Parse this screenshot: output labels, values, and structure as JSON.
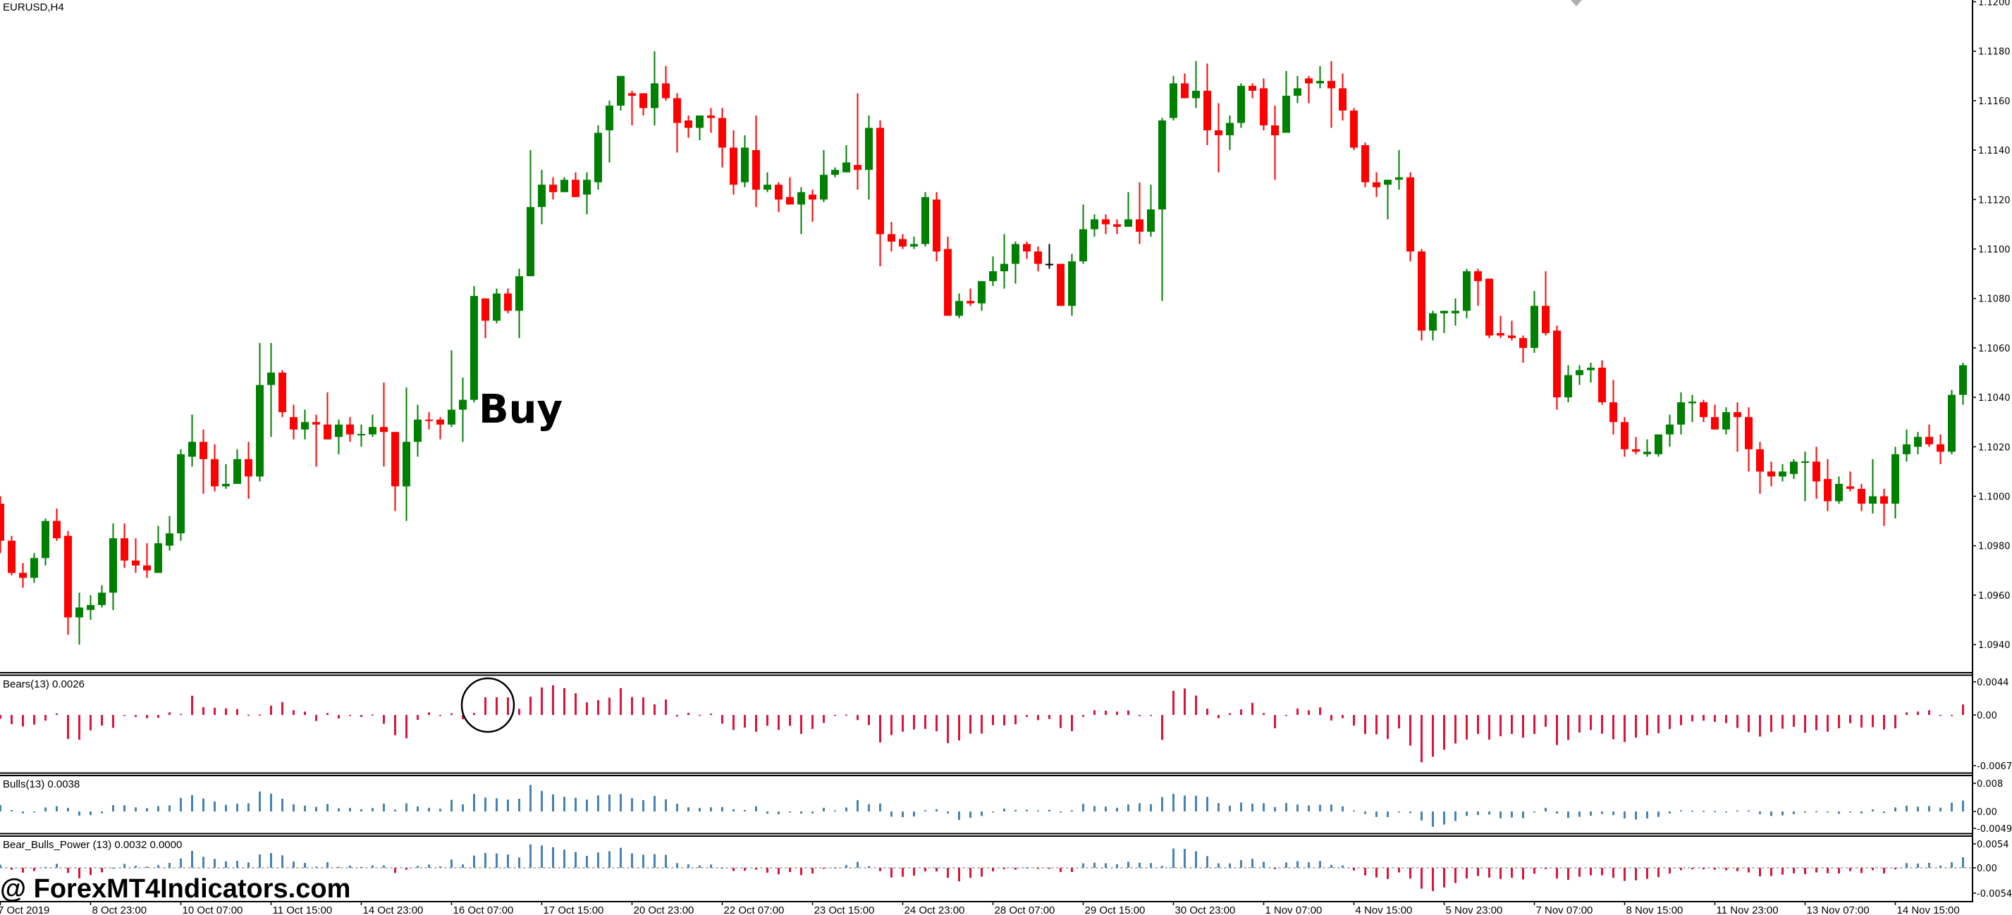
{
  "window": {
    "symbol_timeframe": "EURUSD,H4"
  },
  "annotation": {
    "buy_label": "Buy",
    "circle_marker": "signal-circle"
  },
  "watermark": "@ ForexMT4Indicators.com",
  "colors": {
    "bull": "#008000",
    "bear": "#ff0000",
    "doji": "#000000",
    "bears_hist": "#dc143c",
    "bulls_hist": "#4682b4",
    "axis": "#000000"
  },
  "chart_data": [
    {
      "type": "candlestick",
      "title": "EURUSD,H4",
      "price_ticks": [
        "1.1200",
        "1.1180",
        "1.1160",
        "1.1140",
        "1.1120",
        "1.1100",
        "1.1080",
        "1.1060",
        "1.1040",
        "1.1020",
        "1.1000",
        "1.0980",
        "1.0960",
        "1.0940"
      ],
      "time_labels": [
        "7 Oct 2019",
        "8 Oct 23:00",
        "10 Oct 07:00",
        "11 Oct 15:00",
        "14 Oct 23:00",
        "16 Oct 07:00",
        "17 Oct 15:00",
        "20 Oct 23:00",
        "22 Oct 07:00",
        "23 Oct 15:00",
        "24 Oct 23:00",
        "28 Oct 07:00",
        "29 Oct 15:00",
        "30 Oct 23:00",
        "1 Nov 07:00",
        "4 Nov 15:00",
        "5 Nov 23:00",
        "7 Nov 07:00",
        "8 Nov 15:00",
        "11 Nov 23:00",
        "13 Nov 07:00",
        "14 Nov 15:00"
      ],
      "bars_per_time_label": 8,
      "ohlc_fields": [
        "open",
        "high",
        "low",
        "close"
      ],
      "ohlc": [
        [
          1.0997,
          1.1,
          1.0977,
          1.0982
        ],
        [
          1.0982,
          1.0984,
          1.0968,
          1.0969
        ],
        [
          1.0969,
          1.0973,
          1.0963,
          1.0967
        ],
        [
          1.0967,
          1.0977,
          1.0965,
          1.0975
        ],
        [
          1.0975,
          1.0991,
          1.0972,
          1.099
        ],
        [
          1.099,
          1.0995,
          1.0982,
          1.0983
        ],
        [
          1.0984,
          1.0986,
          1.0944,
          1.0951
        ],
        [
          1.0951,
          1.0961,
          1.094,
          1.0955
        ],
        [
          1.0954,
          1.096,
          1.095,
          1.0956
        ],
        [
          1.0956,
          1.0964,
          1.0955,
          1.0961
        ],
        [
          1.0961,
          1.0989,
          1.0954,
          1.0983
        ],
        [
          1.0983,
          1.0989,
          1.0971,
          1.0974
        ],
        [
          1.0974,
          1.0983,
          1.0969,
          1.0972
        ],
        [
          1.0972,
          1.0981,
          1.0967,
          1.097
        ],
        [
          1.0969,
          1.0988,
          1.0969,
          1.0981
        ],
        [
          1.098,
          1.0992,
          1.0978,
          1.0985
        ],
        [
          1.0985,
          1.1019,
          1.0982,
          1.1017
        ],
        [
          1.1016,
          1.1033,
          1.1012,
          1.1022
        ],
        [
          1.1022,
          1.1027,
          1.1001,
          1.1015
        ],
        [
          1.1015,
          1.1021,
          1.1002,
          1.1004
        ],
        [
          1.1004,
          1.1013,
          1.1003,
          1.1005
        ],
        [
          1.1005,
          1.1019,
          1.1005,
          1.1015
        ],
        [
          1.1015,
          1.1022,
          1.0999,
          1.1008
        ],
        [
          1.1008,
          1.1062,
          1.1006,
          1.1045
        ],
        [
          1.1045,
          1.1062,
          1.1024,
          1.105
        ],
        [
          1.105,
          1.1051,
          1.1032,
          1.1034
        ],
        [
          1.1032,
          1.1037,
          1.1023,
          1.1027
        ],
        [
          1.1027,
          1.1035,
          1.1023,
          1.103
        ],
        [
          1.103,
          1.1033,
          1.1012,
          1.1029
        ],
        [
          1.1029,
          1.1042,
          1.1023,
          1.1023
        ],
        [
          1.1024,
          1.1031,
          1.1017,
          1.1029
        ],
        [
          1.1029,
          1.1032,
          1.1022,
          1.1025
        ],
        [
          1.1025,
          1.1029,
          1.102,
          1.10252
        ],
        [
          1.1025,
          1.1033,
          1.1024,
          1.1028
        ],
        [
          1.1028,
          1.1046,
          1.1012,
          1.1026
        ],
        [
          1.1026,
          1.1026,
          1.0994,
          1.1004
        ],
        [
          1.1004,
          1.1044,
          1.099,
          1.1022
        ],
        [
          1.1022,
          1.1037,
          1.1016,
          1.1031
        ],
        [
          1.1031,
          1.1034,
          1.1027,
          1.10305
        ],
        [
          1.1031,
          1.1032,
          1.1023,
          1.1029
        ],
        [
          1.1029,
          1.1059,
          1.1028,
          1.1035
        ],
        [
          1.1035,
          1.1048,
          1.1022,
          1.1039
        ],
        [
          1.1039,
          1.1085,
          1.1038,
          1.1081
        ],
        [
          1.108,
          1.108,
          1.1064,
          1.1071
        ],
        [
          1.1071,
          1.1084,
          1.107,
          1.1082
        ],
        [
          1.1082,
          1.1084,
          1.1074,
          1.1075
        ],
        [
          1.1075,
          1.1092,
          1.1064,
          1.1089
        ],
        [
          1.1089,
          1.114,
          1.1089,
          1.1117
        ],
        [
          1.1117,
          1.1132,
          1.111,
          1.1126
        ],
        [
          1.1126,
          1.1129,
          1.112,
          1.1123
        ],
        [
          1.1123,
          1.1129,
          1.1123,
          1.1128
        ],
        [
          1.1128,
          1.1131,
          1.1121,
          1.1121
        ],
        [
          1.1122,
          1.1131,
          1.1114,
          1.1128
        ],
        [
          1.1127,
          1.115,
          1.1124,
          1.1147
        ],
        [
          1.1148,
          1.116,
          1.1135,
          1.1158
        ],
        [
          1.1158,
          1.117,
          1.1156,
          1.117
        ],
        [
          1.1163,
          1.1164,
          1.115,
          1.1162
        ],
        [
          1.1163,
          1.1163,
          1.1154,
          1.1157
        ],
        [
          1.1157,
          1.118,
          1.115,
          1.1167
        ],
        [
          1.1167,
          1.1174,
          1.116,
          1.1161
        ],
        [
          1.1161,
          1.1163,
          1.1139,
          1.1151
        ],
        [
          1.1152,
          1.1154,
          1.1145,
          1.1149
        ],
        [
          1.1149,
          1.1154,
          1.1144,
          1.1154
        ],
        [
          1.1154,
          1.1157,
          1.1147,
          1.1153
        ],
        [
          1.1153,
          1.1157,
          1.1133,
          1.1141
        ],
        [
          1.1141,
          1.1148,
          1.1122,
          1.1126
        ],
        [
          1.1127,
          1.1146,
          1.1125,
          1.1141
        ],
        [
          1.114,
          1.1154,
          1.1117,
          1.1124
        ],
        [
          1.1124,
          1.1131,
          1.1123,
          1.1126
        ],
        [
          1.1126,
          1.1127,
          1.1115,
          1.112
        ],
        [
          1.1121,
          1.1129,
          1.1118,
          1.1118
        ],
        [
          1.1118,
          1.1125,
          1.1106,
          1.1123
        ],
        [
          1.1122,
          1.1124,
          1.1111,
          1.112
        ],
        [
          1.112,
          1.114,
          1.1119,
          1.113
        ],
        [
          1.113,
          1.1133,
          1.1129,
          1.1132
        ],
        [
          1.1131,
          1.1142,
          1.1131,
          1.1135
        ],
        [
          1.1134,
          1.1163,
          1.1124,
          1.1132
        ],
        [
          1.1132,
          1.1154,
          1.112,
          1.1149
        ],
        [
          1.1149,
          1.1152,
          1.1093,
          1.1106
        ],
        [
          1.1106,
          1.1111,
          1.1099,
          1.1103
        ],
        [
          1.1104,
          1.1106,
          1.11,
          1.1101
        ],
        [
          1.1101,
          1.1105,
          1.11,
          1.1102
        ],
        [
          1.1102,
          1.1123,
          1.1101,
          1.1121
        ],
        [
          1.112,
          1.1123,
          1.1095,
          1.1099
        ],
        [
          1.11,
          1.1105,
          1.1073,
          1.1073
        ],
        [
          1.1073,
          1.1082,
          1.1072,
          1.1079
        ],
        [
          1.1079,
          1.1084,
          1.1077,
          1.1078
        ],
        [
          1.1078,
          1.1087,
          1.1075,
          1.1087
        ],
        [
          1.1087,
          1.1097,
          1.1085,
          1.1091
        ],
        [
          1.1091,
          1.1106,
          1.1084,
          1.1094
        ],
        [
          1.1094,
          1.1103,
          1.1086,
          1.1102
        ],
        [
          1.1102,
          1.1103,
          1.1096,
          1.1099
        ],
        [
          1.1099,
          1.1101,
          1.1091,
          1.1094
        ],
        [
          1.1094,
          1.1102,
          1.1092,
          1.1094
        ],
        [
          1.1094,
          1.1094,
          1.1077,
          1.1077
        ],
        [
          1.1077,
          1.1098,
          1.1073,
          1.1095
        ],
        [
          1.1095,
          1.1118,
          1.1094,
          1.1108
        ],
        [
          1.1108,
          1.1114,
          1.1105,
          1.1112
        ],
        [
          1.1112,
          1.1114,
          1.1106,
          1.111
        ],
        [
          1.111,
          1.1112,
          1.1106,
          1.1109
        ],
        [
          1.1109,
          1.1123,
          1.1109,
          1.1112
        ],
        [
          1.1112,
          1.1127,
          1.1102,
          1.1107
        ],
        [
          1.1107,
          1.1126,
          1.1105,
          1.1116
        ],
        [
          1.1116,
          1.1153,
          1.1079,
          1.1152
        ],
        [
          1.1153,
          1.117,
          1.1152,
          1.1167
        ],
        [
          1.1167,
          1.1171,
          1.1161,
          1.1161
        ],
        [
          1.1161,
          1.1176,
          1.1157,
          1.1164
        ],
        [
          1.1164,
          1.1175,
          1.1142,
          1.1148
        ],
        [
          1.1148,
          1.1159,
          1.1131,
          1.1146
        ],
        [
          1.1146,
          1.1154,
          1.114,
          1.1151
        ],
        [
          1.1151,
          1.1167,
          1.1149,
          1.1166
        ],
        [
          1.1166,
          1.1167,
          1.1161,
          1.1164
        ],
        [
          1.1165,
          1.1169,
          1.1148,
          1.115
        ],
        [
          1.115,
          1.1158,
          1.1128,
          1.1146
        ],
        [
          1.1147,
          1.1172,
          1.1147,
          1.1162
        ],
        [
          1.1162,
          1.117,
          1.1159,
          1.1165
        ],
        [
          1.1169,
          1.117,
          1.1159,
          1.1167
        ],
        [
          1.1167,
          1.1174,
          1.1165,
          1.1168
        ],
        [
          1.1168,
          1.1176,
          1.1149,
          1.1165
        ],
        [
          1.1165,
          1.1171,
          1.1152,
          1.1156
        ],
        [
          1.1156,
          1.1157,
          1.114,
          1.1141
        ],
        [
          1.1142,
          1.1143,
          1.1125,
          1.1127
        ],
        [
          1.1127,
          1.1131,
          1.1121,
          1.1125
        ],
        [
          1.1126,
          1.1128,
          1.1112,
          1.1128
        ],
        [
          1.1128,
          1.114,
          1.1124,
          1.1129
        ],
        [
          1.1129,
          1.1131,
          1.1095,
          1.1099
        ],
        [
          1.1099,
          1.11,
          1.1063,
          1.1067
        ],
        [
          1.1067,
          1.1075,
          1.1063,
          1.1074
        ],
        [
          1.1074,
          1.1075,
          1.1066,
          1.1075
        ],
        [
          1.1074,
          1.108,
          1.1069,
          1.1075
        ],
        [
          1.1075,
          1.1092,
          1.1072,
          1.1091
        ],
        [
          1.1091,
          1.1092,
          1.1077,
          1.1087
        ],
        [
          1.1088,
          1.1088,
          1.1064,
          1.1065
        ],
        [
          1.1066,
          1.1073,
          1.1064,
          1.1065
        ],
        [
          1.1065,
          1.1071,
          1.1063,
          1.1064
        ],
        [
          1.1064,
          1.1065,
          1.1054,
          1.106
        ],
        [
          1.106,
          1.1083,
          1.1058,
          1.1077
        ],
        [
          1.1077,
          1.1091,
          1.1065,
          1.1066
        ],
        [
          1.1067,
          1.1069,
          1.1035,
          1.104
        ],
        [
          1.104,
          1.1053,
          1.1038,
          1.1049
        ],
        [
          1.1049,
          1.1053,
          1.1045,
          1.1051
        ],
        [
          1.1051,
          1.1054,
          1.1046,
          1.1052
        ],
        [
          1.1052,
          1.1055,
          1.1037,
          1.1038
        ],
        [
          1.1038,
          1.1047,
          1.1025,
          1.103
        ],
        [
          1.103,
          1.1032,
          1.1016,
          1.1019
        ],
        [
          1.1019,
          1.1024,
          1.1017,
          1.1018
        ],
        [
          1.1017,
          1.1023,
          1.1016,
          1.1018
        ],
        [
          1.1017,
          1.1025,
          1.1016,
          1.1025
        ],
        [
          1.1025,
          1.1033,
          1.102,
          1.1029
        ],
        [
          1.1029,
          1.1042,
          1.1025,
          1.1038
        ],
        [
          1.10376,
          1.1041,
          1.103,
          1.10383
        ],
        [
          1.1038,
          1.1039,
          1.103,
          1.1032
        ],
        [
          1.1032,
          1.1037,
          1.1027,
          1.1027
        ],
        [
          1.1027,
          1.1036,
          1.1025,
          1.1034
        ],
        [
          1.1034,
          1.1038,
          1.1018,
          1.1032
        ],
        [
          1.1032,
          1.1036,
          1.101,
          1.1019
        ],
        [
          1.1019,
          1.1022,
          1.1001,
          1.101
        ],
        [
          1.101,
          1.1014,
          1.1004,
          1.1008
        ],
        [
          1.1008,
          1.1013,
          1.1006,
          1.101
        ],
        [
          1.1009,
          1.1015,
          1.1007,
          1.1014
        ],
        [
          1.1014,
          1.1018,
          1.0998,
          1.10141
        ],
        [
          1.1014,
          1.102,
          1.0999,
          1.1006
        ],
        [
          1.1007,
          1.1015,
          1.0994,
          1.0998
        ],
        [
          1.0998,
          1.1008,
          1.0997,
          1.1005
        ],
        [
          1.1004,
          1.101,
          1.1002,
          1.1003
        ],
        [
          1.1003,
          1.1005,
          1.0994,
          1.0997
        ],
        [
          1.0997,
          1.1015,
          1.0993,
          1.1
        ],
        [
          1.1,
          1.1003,
          1.0988,
          1.0997
        ],
        [
          1.0997,
          1.102,
          1.0991,
          1.1017
        ],
        [
          1.1017,
          1.1027,
          1.1014,
          1.1021
        ],
        [
          1.102,
          1.1026,
          1.1017,
          1.1024
        ],
        [
          1.1024,
          1.1029,
          1.102,
          1.1021
        ],
        [
          1.1021,
          1.1025,
          1.1013,
          1.1018
        ],
        [
          1.1018,
          1.1043,
          1.1017,
          1.1041
        ],
        [
          1.1041,
          1.1054,
          1.1037,
          1.1053
        ]
      ]
    },
    {
      "type": "bar",
      "title": "Bears(13) 0.0026",
      "period": 13,
      "ticks": [
        "0.0044",
        "0.00",
        "-0.0067"
      ],
      "ylim": [
        -0.0067,
        0.0044
      ]
    },
    {
      "type": "bar",
      "title": "Bulls(13) 0.0038",
      "period": 13,
      "ticks": [
        "0.008",
        "0.00",
        "-0.0049"
      ],
      "ylim": [
        -0.0049,
        0.008
      ]
    },
    {
      "type": "bar",
      "title": "Bear_Bulls_Power (13)  0.0032 0.0000",
      "period": 13,
      "ticks": [
        "0.0054",
        "0.00",
        "-0.0054"
      ],
      "ylim": [
        -0.0054,
        0.0054
      ]
    }
  ]
}
